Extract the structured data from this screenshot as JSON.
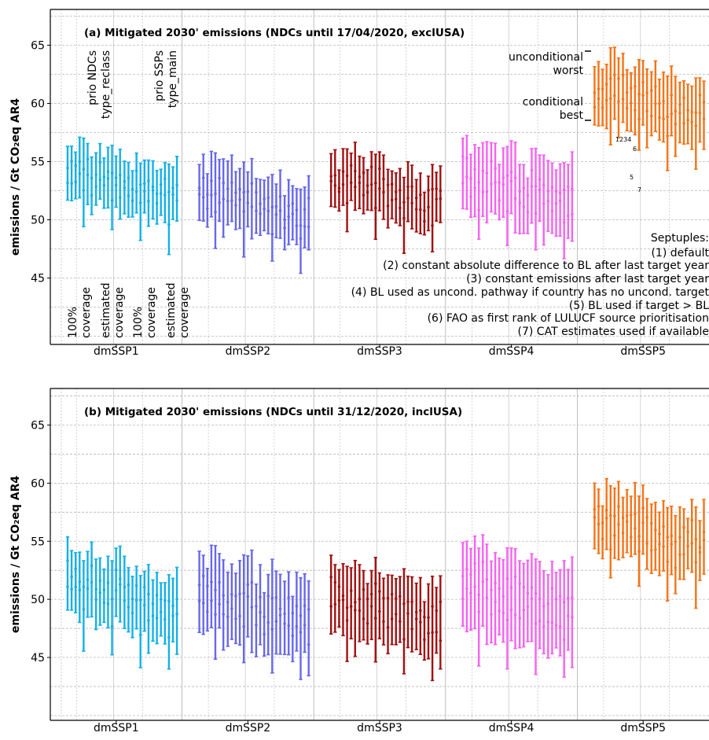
{
  "colors": {
    "dmSSP1": "#12b0e8",
    "dmSSP2": "#6767ea",
    "dmSSP3": "#a01010",
    "dmSSP4": "#f563f0",
    "dmSSP5": "#f47418",
    "grid": "#b8b8b8",
    "text": "#000000"
  },
  "chart_data": [
    {
      "type": "errorbar",
      "title": "(a) Mitigated 2030' emissions (NDCs until 17/04/2020, exclUSA)",
      "ylabel": "emissions / Gt CO₂eq AR4",
      "ylim": [
        39.5,
        67
      ],
      "yticks": [
        "45",
        "50",
        "55",
        "60",
        "65"
      ],
      "categories": [
        "dmSSP1",
        "dmSSP2",
        "dmSSP3",
        "dmSSP4",
        "dmSSP5"
      ],
      "group_labels": [
        "prio NDCs\ntype_reclass",
        "prio SSPs\ntype_main"
      ],
      "coverage_labels": [
        "100%\ncoverage",
        "estimated\ncoverage",
        "100%\ncoverage",
        "estimated\ncoverage"
      ],
      "range_annotations": [
        "unconditional",
        "worst",
        "conditional",
        "best"
      ],
      "septuple_marks": [
        "1234",
        "5",
        "6",
        "7"
      ],
      "legend_lines": [
        "Septuples:",
        "(1) default",
        "(2) constant absolute difference to BL after last target year",
        "(3) constant emissions after last target year",
        "(4) BL used as uncond. pathway if country has no uncond. target",
        "(5) BL used if target > BL",
        "(6) FAO as first rank of LULUCF source prioritisation",
        "(7) CAT estimates used if available"
      ],
      "base": [
        53.2,
        52.3,
        52.4,
        52.0,
        61.0
      ],
      "base_bottom": [
        51.7,
        49.9,
        51.2,
        50.8,
        58.4
      ],
      "base_top": [
        57.0,
        55.7,
        56.4,
        57.3,
        64.6
      ]
    },
    {
      "type": "errorbar",
      "title": "(b) Mitigated 2030' emissions (NDCs until 31/12/2020, inclUSA)",
      "ylabel": "emissions / Gt CO₂eq AR4",
      "ylim": [
        39.5,
        68
      ],
      "yticks": [
        "45",
        "50",
        "55",
        "60",
        "65"
      ],
      "categories": [
        "dmSSP1",
        "dmSSP2",
        "dmSSP3",
        "dmSSP4",
        "dmSSP5"
      ],
      "base": [
        50.8,
        50.1,
        49.0,
        50.1,
        56.2
      ],
      "base_bottom": [
        48.5,
        47.0,
        47.2,
        47.2,
        54.0
      ],
      "base_top": [
        54.8,
        54.3,
        54.0,
        55.3,
        60.3
      ]
    }
  ]
}
